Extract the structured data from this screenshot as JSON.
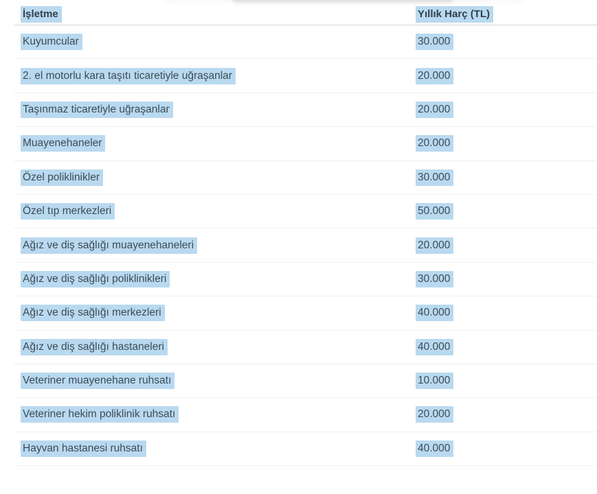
{
  "page": {
    "background_color": "#ffffff",
    "selection_highlight_color": "#b9d9f0",
    "text_color": "#3d4b55"
  },
  "table": {
    "columns": [
      {
        "label": "İşletme"
      },
      {
        "label": "Yıllık Harç (TL)"
      }
    ],
    "rows": [
      {
        "business": "Kuyumcular",
        "fee": "30.000"
      },
      {
        "business": "2. el motorlu kara taşıtı ticaretiyle uğraşanlar",
        "fee": "20.000"
      },
      {
        "business": "Taşınmaz ticaretiyle uğraşanlar",
        "fee": "20.000"
      },
      {
        "business": "Muayenehaneler",
        "fee": "20.000"
      },
      {
        "business": "Özel poliklinikler",
        "fee": "30.000"
      },
      {
        "business": "Özel tıp merkezleri",
        "fee": "50.000"
      },
      {
        "business": "Ağız ve diş sağlığı muayenehaneleri",
        "fee": "20.000"
      },
      {
        "business": "Ağız ve diş sağlığı poliklinikleri",
        "fee": "30.000"
      },
      {
        "business": "Ağız ve diş sağlığı merkezleri",
        "fee": "40.000"
      },
      {
        "business": "Ağız ve diş sağlığı hastaneleri",
        "fee": "40.000"
      },
      {
        "business": "Veteriner muayenehane ruhsatı",
        "fee": "10.000"
      },
      {
        "business": "Veteriner hekim poliklinik ruhsatı",
        "fee": "20.000"
      },
      {
        "business": "Hayvan hastanesi ruhsatı",
        "fee": "40.000"
      }
    ]
  }
}
